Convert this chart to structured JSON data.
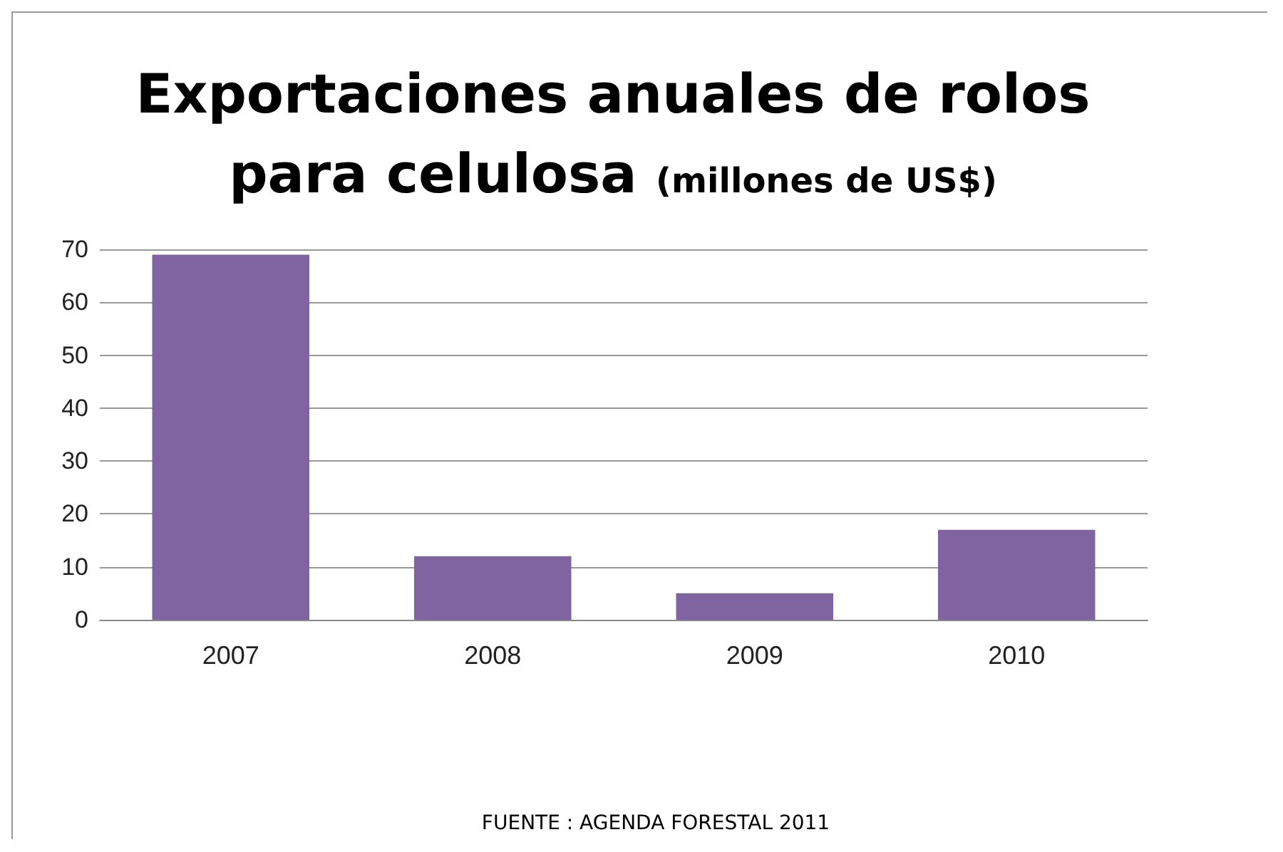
{
  "chart_data": {
    "type": "bar",
    "title": "Exportaciones anuales de rolos para celulosa",
    "subtitle": "(millones de US$)",
    "categories": [
      "2007",
      "2008",
      "2009",
      "2010"
    ],
    "values": [
      69,
      12,
      5,
      17
    ],
    "color": "#8064a2",
    "ylim": [
      0,
      70
    ],
    "yticks": [
      0,
      10,
      20,
      30,
      40,
      50,
      60,
      70
    ],
    "grid": "y",
    "annotations": [
      "FUENTE : AGENDA FORESTAL 2011"
    ]
  }
}
